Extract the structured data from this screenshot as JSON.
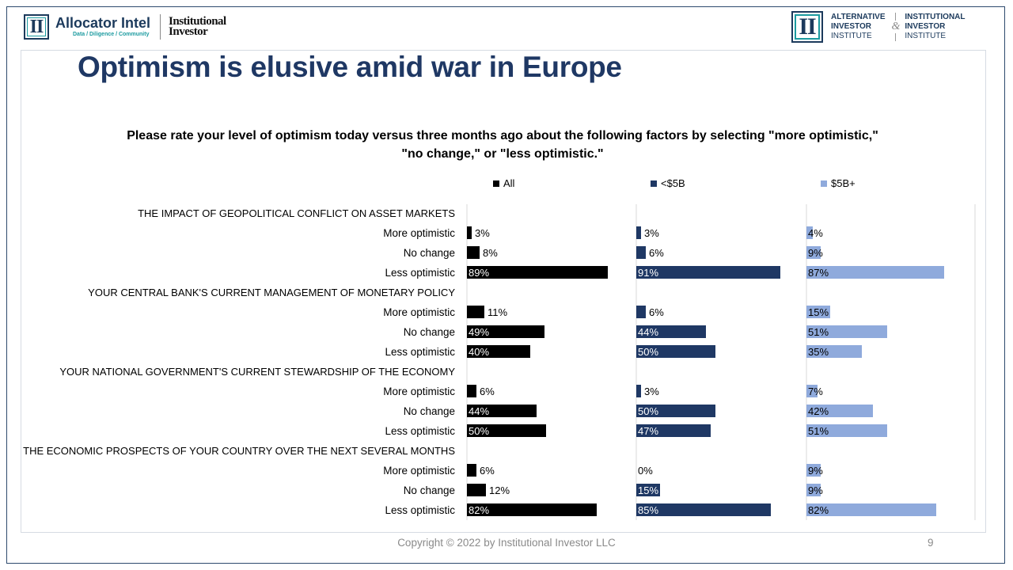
{
  "header": {
    "left_logo_mark": "II",
    "brand_name": "Allocator Intel",
    "brand_tagline": "Data / Diligence / Community",
    "ii_wordmark_line1": "Institutional",
    "ii_wordmark_line2": "Investor",
    "right_logo_mark": "II",
    "aii_line1": "ALTERNATIVE",
    "aii_line2": "INVESTOR",
    "aii_line3": "INSTITUTE",
    "amp": "&",
    "iii_line1": "INSTITUTIONAL",
    "iii_line2": "INVESTOR",
    "iii_line3": "INSTITUTE"
  },
  "title": "Optimism is elusive amid war in Europe",
  "footer": {
    "copyright": "Copyright © 2022 by Institutional Investor LLC",
    "page_number": "9"
  },
  "colors": {
    "all": "#000000",
    "under5b": "#1f3864",
    "over5b": "#8faadc",
    "title": "#1f3864"
  },
  "chart_data": {
    "type": "bar",
    "orientation": "horizontal",
    "title": "Please rate your level of optimism today versus three months ago about the following factors by selecting \"more optimistic,\" \"no change,\" or \"less optimistic.\"",
    "title_line1": "Please rate your level of optimism today versus three months ago about the following factors by selecting \"more optimistic,\"",
    "title_line2": "\"no change,\" or \"less optimistic.\"",
    "legend_position": "top",
    "value_format": "percent",
    "groups": [
      {
        "label": "THE IMPACT OF GEOPOLITICAL CONFLICT ON ASSET MARKETS",
        "rows": [
          {
            "label": "More optimistic",
            "values": [
              3,
              3,
              4
            ]
          },
          {
            "label": "No change",
            "values": [
              8,
              6,
              9
            ]
          },
          {
            "label": "Less optimistic",
            "values": [
              89,
              91,
              87
            ]
          }
        ]
      },
      {
        "label": "YOUR CENTRAL BANK'S CURRENT MANAGEMENT OF MONETARY POLICY",
        "rows": [
          {
            "label": "More optimistic",
            "values": [
              11,
              6,
              15
            ]
          },
          {
            "label": "No change",
            "values": [
              49,
              44,
              51
            ]
          },
          {
            "label": "Less optimistic",
            "values": [
              40,
              50,
              35
            ]
          }
        ]
      },
      {
        "label": "YOUR NATIONAL GOVERNMENT'S CURRENT STEWARDSHIP OF THE ECONOMY",
        "rows": [
          {
            "label": "More optimistic",
            "values": [
              6,
              3,
              7
            ]
          },
          {
            "label": "No change",
            "values": [
              44,
              50,
              42
            ]
          },
          {
            "label": "Less optimistic",
            "values": [
              50,
              47,
              51
            ]
          }
        ]
      },
      {
        "label": "THE ECONOMIC PROSPECTS OF YOUR COUNTRY OVER THE NEXT SEVERAL MONTHS",
        "rows": [
          {
            "label": "More optimistic",
            "values": [
              6,
              0,
              9
            ]
          },
          {
            "label": "No change",
            "values": [
              12,
              15,
              9
            ]
          },
          {
            "label": "Less optimistic",
            "values": [
              82,
              85,
              82
            ]
          }
        ]
      }
    ],
    "series": [
      {
        "name": "All",
        "color": "#000000"
      },
      {
        "name": "<$5B",
        "color": "#1f3864"
      },
      {
        "name": "$5B+",
        "color": "#8faadc"
      }
    ],
    "xlim": [
      0,
      100
    ]
  }
}
